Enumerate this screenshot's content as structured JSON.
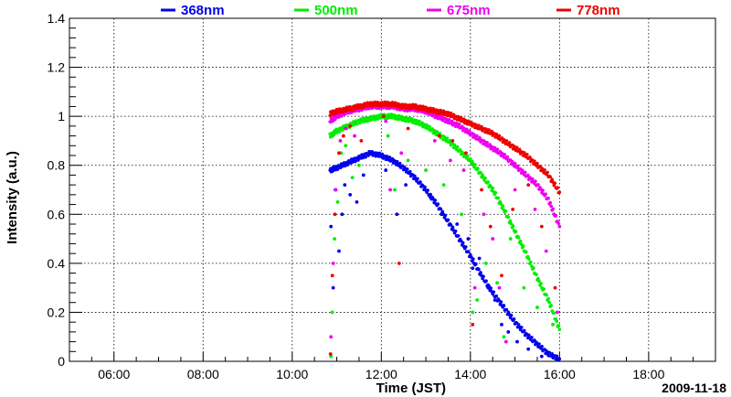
{
  "chart_data": {
    "type": "scatter",
    "title": "",
    "xlabel": "Time (JST)",
    "ylabel": "Intensity (a.u.)",
    "date_label": "2009-11-18",
    "xlim": [
      5.0,
      19.5
    ],
    "ylim": [
      0,
      1.4
    ],
    "grid": true,
    "legend_position": "top",
    "x_ticks": [
      {
        "value": 6,
        "label": "06:00"
      },
      {
        "value": 8,
        "label": "08:00"
      },
      {
        "value": 10,
        "label": "10:00"
      },
      {
        "value": 12,
        "label": "12:00"
      },
      {
        "value": 14,
        "label": "14:00"
      },
      {
        "value": 16,
        "label": "16:00"
      },
      {
        "value": 18,
        "label": "18:00"
      }
    ],
    "y_ticks": [
      {
        "value": 0,
        "label": "0"
      },
      {
        "value": 0.2,
        "label": "0.2"
      },
      {
        "value": 0.4,
        "label": "0.4"
      },
      {
        "value": 0.6,
        "label": "0.6"
      },
      {
        "value": 0.8,
        "label": "0.8"
      },
      {
        "value": 1.0,
        "label": "1"
      },
      {
        "value": 1.2,
        "label": "1.2"
      },
      {
        "value": 1.4,
        "label": "1.4"
      }
    ],
    "series": [
      {
        "name": "368nm",
        "color": "#0000ee",
        "x": [
          10.85,
          11.0,
          11.25,
          11.5,
          11.75,
          12.0,
          12.25,
          12.5,
          12.75,
          13.0,
          13.25,
          13.5,
          13.75,
          14.0,
          14.25,
          14.5,
          14.75,
          15.0,
          15.25,
          15.5,
          15.75,
          16.0
        ],
        "y": [
          0.78,
          0.79,
          0.81,
          0.83,
          0.85,
          0.84,
          0.82,
          0.79,
          0.75,
          0.7,
          0.64,
          0.57,
          0.5,
          0.43,
          0.35,
          0.28,
          0.22,
          0.16,
          0.11,
          0.07,
          0.03,
          0.01
        ],
        "outliers_x": [
          10.87,
          10.92,
          10.97,
          11.05,
          11.12,
          11.18,
          11.3,
          11.45,
          11.6,
          12.1,
          12.35,
          12.55,
          13.1,
          13.35,
          13.7,
          13.95,
          14.05,
          14.2,
          14.4,
          14.55,
          14.7,
          14.85,
          15.05,
          15.3,
          15.6,
          15.95
        ],
        "outliers_y": [
          0.55,
          0.3,
          0.7,
          0.45,
          0.6,
          0.72,
          0.68,
          0.65,
          0.76,
          0.78,
          0.6,
          0.72,
          0.67,
          0.6,
          0.56,
          0.5,
          0.38,
          0.42,
          0.3,
          0.25,
          0.15,
          0.12,
          0.08,
          0.05,
          0.02,
          0.01
        ]
      },
      {
        "name": "500nm",
        "color": "#00ee00",
        "x": [
          10.85,
          11.0,
          11.25,
          11.5,
          11.75,
          12.0,
          12.25,
          12.5,
          12.75,
          13.0,
          13.25,
          13.5,
          13.75,
          14.0,
          14.25,
          14.5,
          14.75,
          15.0,
          15.25,
          15.5,
          15.75,
          16.0
        ],
        "y": [
          0.92,
          0.94,
          0.96,
          0.98,
          0.99,
          1.0,
          1.0,
          0.99,
          0.98,
          0.96,
          0.93,
          0.9,
          0.86,
          0.82,
          0.76,
          0.7,
          0.62,
          0.53,
          0.44,
          0.34,
          0.25,
          0.13
        ],
        "outliers_x": [
          10.87,
          10.9,
          10.95,
          11.02,
          11.1,
          11.2,
          11.35,
          11.5,
          12.15,
          12.3,
          12.6,
          13.0,
          13.4,
          13.8,
          14.05,
          14.15,
          14.35,
          14.6,
          14.75,
          14.9,
          15.2,
          15.5,
          15.85
        ],
        "outliers_y": [
          0.02,
          0.2,
          0.5,
          0.65,
          0.85,
          0.88,
          0.75,
          0.8,
          0.92,
          0.7,
          0.82,
          0.78,
          0.72,
          0.6,
          0.2,
          0.25,
          0.4,
          0.32,
          0.1,
          0.5,
          0.3,
          0.22,
          0.15
        ]
      },
      {
        "name": "675nm",
        "color": "#ee00ee",
        "x": [
          10.85,
          11.0,
          11.25,
          11.5,
          11.75,
          12.0,
          12.25,
          12.5,
          12.75,
          13.0,
          13.25,
          13.5,
          13.75,
          14.0,
          14.25,
          14.5,
          14.75,
          15.0,
          15.25,
          15.5,
          15.75,
          16.0
        ],
        "y": [
          0.98,
          1.0,
          1.02,
          1.03,
          1.04,
          1.04,
          1.04,
          1.03,
          1.03,
          1.02,
          1.0,
          0.98,
          0.96,
          0.93,
          0.9,
          0.87,
          0.84,
          0.8,
          0.76,
          0.72,
          0.66,
          0.55
        ],
        "outliers_x": [
          10.87,
          10.92,
          10.98,
          11.08,
          11.2,
          11.4,
          12.1,
          12.2,
          12.45,
          13.2,
          13.55,
          13.85,
          14.1,
          14.3,
          14.5,
          14.65,
          14.8,
          15.0,
          15.45,
          15.7,
          15.95
        ],
        "outliers_y": [
          0.1,
          0.4,
          0.7,
          0.9,
          0.95,
          0.92,
          0.98,
          0.7,
          0.85,
          0.9,
          0.82,
          0.78,
          0.3,
          0.6,
          0.5,
          0.3,
          0.08,
          0.7,
          0.62,
          0.45,
          0.2
        ]
      },
      {
        "name": "778nm",
        "color": "#ee0000",
        "x": [
          10.85,
          11.0,
          11.25,
          11.5,
          11.75,
          12.0,
          12.25,
          12.5,
          12.75,
          13.0,
          13.25,
          13.5,
          13.75,
          14.0,
          14.25,
          14.5,
          14.75,
          15.0,
          15.25,
          15.5,
          15.75,
          16.0
        ],
        "y": [
          1.01,
          1.02,
          1.03,
          1.04,
          1.05,
          1.05,
          1.05,
          1.04,
          1.04,
          1.03,
          1.02,
          1.01,
          0.99,
          0.97,
          0.95,
          0.93,
          0.9,
          0.87,
          0.84,
          0.8,
          0.76,
          0.69
        ],
        "outliers_x": [
          10.86,
          10.9,
          10.96,
          11.05,
          11.15,
          11.3,
          11.55,
          12.05,
          12.4,
          12.6,
          13.3,
          13.6,
          13.9,
          14.05,
          14.25,
          14.45,
          14.7,
          14.95,
          15.3,
          15.6,
          15.9
        ],
        "outliers_y": [
          0.03,
          0.35,
          0.6,
          0.85,
          0.92,
          0.96,
          0.9,
          1.0,
          0.4,
          0.95,
          0.92,
          0.9,
          0.85,
          0.15,
          0.7,
          0.55,
          0.35,
          0.62,
          0.72,
          0.55,
          0.3
        ]
      }
    ]
  }
}
